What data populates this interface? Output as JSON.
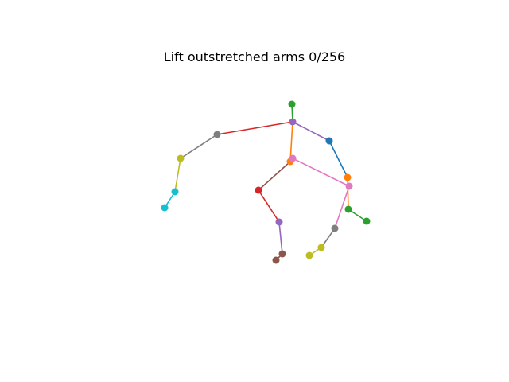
{
  "figure": {
    "title": "Lift outstretched arms 0/256"
  },
  "skeleton": {
    "joints": [
      {
        "id": "a",
        "color": "#2ca02c"
      },
      {
        "id": "b",
        "color": "#9467bd"
      },
      {
        "id": "c",
        "color": "#ff7f0e"
      },
      {
        "id": "d",
        "color": "#e377c2"
      },
      {
        "id": "e",
        "color": "#d62728"
      },
      {
        "id": "f",
        "color": "#9467bd"
      },
      {
        "id": "g",
        "color": "#8c564b"
      },
      {
        "id": "h",
        "color": "#8c564b"
      },
      {
        "id": "i",
        "color": "#7f7f7f"
      },
      {
        "id": "j",
        "color": "#bcbd22"
      },
      {
        "id": "k",
        "color": "#17becf"
      },
      {
        "id": "l",
        "color": "#17becf"
      },
      {
        "id": "m",
        "color": "#1f77b4"
      },
      {
        "id": "n",
        "color": "#ff7f0e"
      },
      {
        "id": "o",
        "color": "#e377c2"
      },
      {
        "id": "p",
        "color": "#2ca02c"
      },
      {
        "id": "q",
        "color": "#2ca02c"
      },
      {
        "id": "r",
        "color": "#7f7f7f"
      },
      {
        "id": "s",
        "color": "#bcbd22"
      },
      {
        "id": "t",
        "color": "#bcbd22"
      }
    ],
    "bones": [
      {
        "from": "a",
        "to": "b",
        "color": "#2ca02c"
      },
      {
        "from": "b",
        "to": "c",
        "color": "#ff7f0e"
      },
      {
        "from": "c",
        "to": "e",
        "color": "#8c564b"
      },
      {
        "from": "e",
        "to": "f",
        "color": "#d62728"
      },
      {
        "from": "f",
        "to": "g",
        "color": "#9467bd"
      },
      {
        "from": "g",
        "to": "h",
        "color": "#8c564b"
      },
      {
        "from": "b",
        "to": "i",
        "color": "#d62728"
      },
      {
        "from": "i",
        "to": "j",
        "color": "#7f7f7f"
      },
      {
        "from": "j",
        "to": "k",
        "color": "#bcbd22"
      },
      {
        "from": "k",
        "to": "l",
        "color": "#17becf"
      },
      {
        "from": "b",
        "to": "m",
        "color": "#9467bd"
      },
      {
        "from": "m",
        "to": "n",
        "color": "#1f77b4"
      },
      {
        "from": "n",
        "to": "p",
        "color": "#ff7f0e"
      },
      {
        "from": "p",
        "to": "q",
        "color": "#2ca02c"
      },
      {
        "from": "d",
        "to": "o",
        "color": "#e377c2"
      },
      {
        "from": "o",
        "to": "r",
        "color": "#e377c2"
      },
      {
        "from": "r",
        "to": "s",
        "color": "#7f7f7f"
      },
      {
        "from": "s",
        "to": "t",
        "color": "#bcbd22"
      }
    ]
  }
}
